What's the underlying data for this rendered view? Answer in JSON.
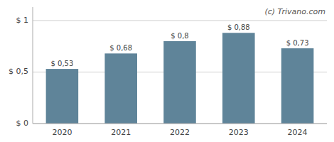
{
  "chart_data": {
    "type": "bar",
    "annotation": "(c) Trivano.com",
    "categories": [
      "2020",
      "2021",
      "2022",
      "2023",
      "2024"
    ],
    "values": [
      0.53,
      0.68,
      0.8,
      0.88,
      0.73
    ],
    "value_labels": [
      "$ 0,53",
      "$ 0,68",
      "$ 0,8",
      "$ 0,88",
      "$ 0,73"
    ],
    "color": "#5f8499",
    "ylim": [
      0,
      1.13
    ],
    "yticks": [
      {
        "value": 0.0,
        "label": "$ 0"
      },
      {
        "value": 0.5,
        "label": "$ 0,5"
      },
      {
        "value": 1.0,
        "label": "$ 1"
      }
    ],
    "grid": true,
    "data_labels": true
  }
}
